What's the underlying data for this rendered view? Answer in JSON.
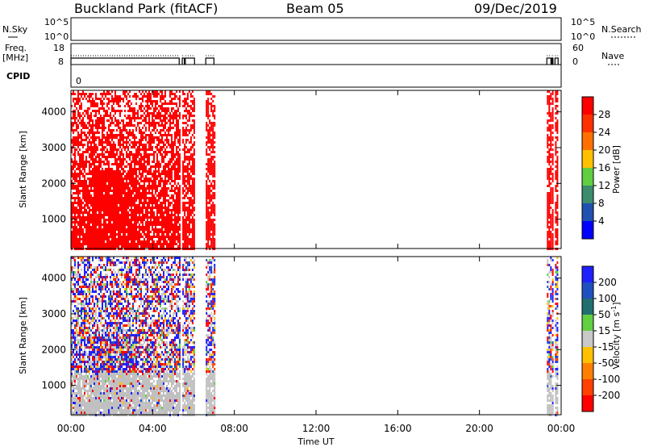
{
  "header": {
    "station": "Buckland Park (fitACF)",
    "beam": "Beam 05",
    "date": "09/Dec/2019"
  },
  "top_panels": {
    "nsky_label": "N.Sky",
    "nsky_left_ticks": [
      "10^5",
      "10^0"
    ],
    "nsky_right_ticks": [
      "10^5",
      "10^0"
    ],
    "nsearch_label": "N.Search",
    "freq_label_1": "Freq.",
    "freq_label_2": "[MHz]",
    "freq_ticks": [
      "18",
      "8"
    ],
    "nave_label": "Nave",
    "nave_ticks": [
      "60",
      "0"
    ],
    "cpid_label": "CPID",
    "cpid_value": "0"
  },
  "chart_data": [
    {
      "type": "heatmap",
      "name": "power",
      "ylabel": "Slant Range [km]",
      "xlabel": "Time UT",
      "x_ticks": [
        "00:00",
        "04:00",
        "08:00",
        "12:00",
        "16:00",
        "20:00",
        "00:00"
      ],
      "xlim_hours": [
        0,
        24
      ],
      "ylim_km": [
        180,
        4600
      ],
      "y_ticks": [
        1000,
        2000,
        3000,
        4000
      ],
      "colorbar_label": "Power [dB]",
      "colorbar_ticks": [
        "4",
        "8",
        "12",
        "16",
        "20",
        "24",
        "28"
      ],
      "colors": [
        "#0000ff",
        "#2050b0",
        "#3c8c6e",
        "#5fcf3f",
        "#ffc000",
        "#ff7000",
        "#ff3000",
        "#ff0000"
      ],
      "dominant_color": "#ff0000",
      "data_time_ranges_hours": [
        [
          0.0,
          5.3
        ],
        [
          5.45,
          5.55
        ],
        [
          5.6,
          6.05
        ],
        [
          6.6,
          7.0
        ],
        [
          23.3,
          23.5
        ],
        [
          23.55,
          23.6
        ],
        [
          23.7,
          23.85
        ]
      ]
    },
    {
      "type": "heatmap",
      "name": "velocity",
      "ylabel": "Slant Range [km]",
      "xlabel": "Time UT",
      "x_ticks": [
        "00:00",
        "04:00",
        "08:00",
        "12:00",
        "16:00",
        "20:00",
        "00:00"
      ],
      "xlim_hours": [
        0,
        24
      ],
      "ylim_km": [
        180,
        4600
      ],
      "y_ticks": [
        1000,
        2000,
        3000,
        4000
      ],
      "colorbar_label": "Velocity [m s^-1]",
      "colorbar_ticks": [
        "200",
        "100",
        "50",
        "15",
        "-15",
        "-50",
        "-100",
        "-200"
      ],
      "colors": [
        "#2020ff",
        "#2050c0",
        "#207070",
        "#60d040",
        "#c8c8c8",
        "#ffc000",
        "#ff8000",
        "#ff4000",
        "#ff0000"
      ],
      "ground_scatter_color": "#c0c0c0",
      "data_time_ranges_hours": [
        [
          0.0,
          5.3
        ],
        [
          5.45,
          5.55
        ],
        [
          5.6,
          6.05
        ],
        [
          6.6,
          7.0
        ],
        [
          23.3,
          23.5
        ],
        [
          23.55,
          23.6
        ],
        [
          23.7,
          23.85
        ]
      ]
    }
  ]
}
